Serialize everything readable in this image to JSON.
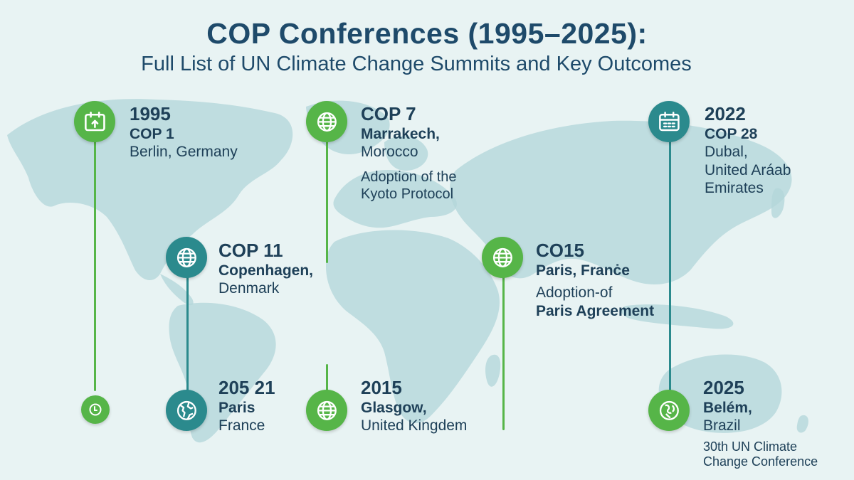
{
  "title": "COP Conferences (1995–2025):",
  "subtitle": "Full List of UN Climate Change Summits and Key Outcomes",
  "colors": {
    "green": "#56b548",
    "teal": "#2b8a8d",
    "text": "#1e4058",
    "background": "#e8f3f3",
    "map": "#b4d6da"
  },
  "entries": [
    {
      "id": "e1",
      "icon": "calendar-icon",
      "year": "1995",
      "cop": "COP 1",
      "place": "Berlin, Germany"
    },
    {
      "id": "e2",
      "icon": "globe-icon",
      "cop": "COP 7",
      "place_1": "Marrakech,",
      "place_2": "Morocco",
      "outcome_1": "Adoption of the",
      "outcome_2": "Kyoto Protocol"
    },
    {
      "id": "e3",
      "icon": "calendar-icon",
      "year": "2022",
      "cop": "COP 28",
      "place_1": "Dubal,",
      "place_2": "United Aráab",
      "place_3": "Emirates"
    },
    {
      "id": "e4",
      "icon": "globe-icon",
      "cop": "COP 11",
      "place_1": "Copenhagen,",
      "place_2": "Denmark"
    },
    {
      "id": "e5",
      "icon": "globe-icon",
      "cop": "CO15",
      "place": "Paris, Franċe",
      "outcome_1": "Adoption-of",
      "outcome_2": "Paris Agreement"
    },
    {
      "id": "e6",
      "icon": "clock-icon"
    },
    {
      "id": "e7",
      "icon": "globe-map-icon",
      "year": "205 21",
      "place_1": "Paris",
      "place_2": "France"
    },
    {
      "id": "e8",
      "icon": "globe-icon",
      "year": "2015",
      "place_1": "Glasgow,",
      "place_2": "United Kingdem"
    },
    {
      "id": "e9",
      "icon": "leaf-globe-icon",
      "year": "2025",
      "place_1": "Belém,",
      "place_2": "Brazil",
      "outcome_1": "30th UN Climate",
      "outcome_2": "Change Conference"
    }
  ]
}
